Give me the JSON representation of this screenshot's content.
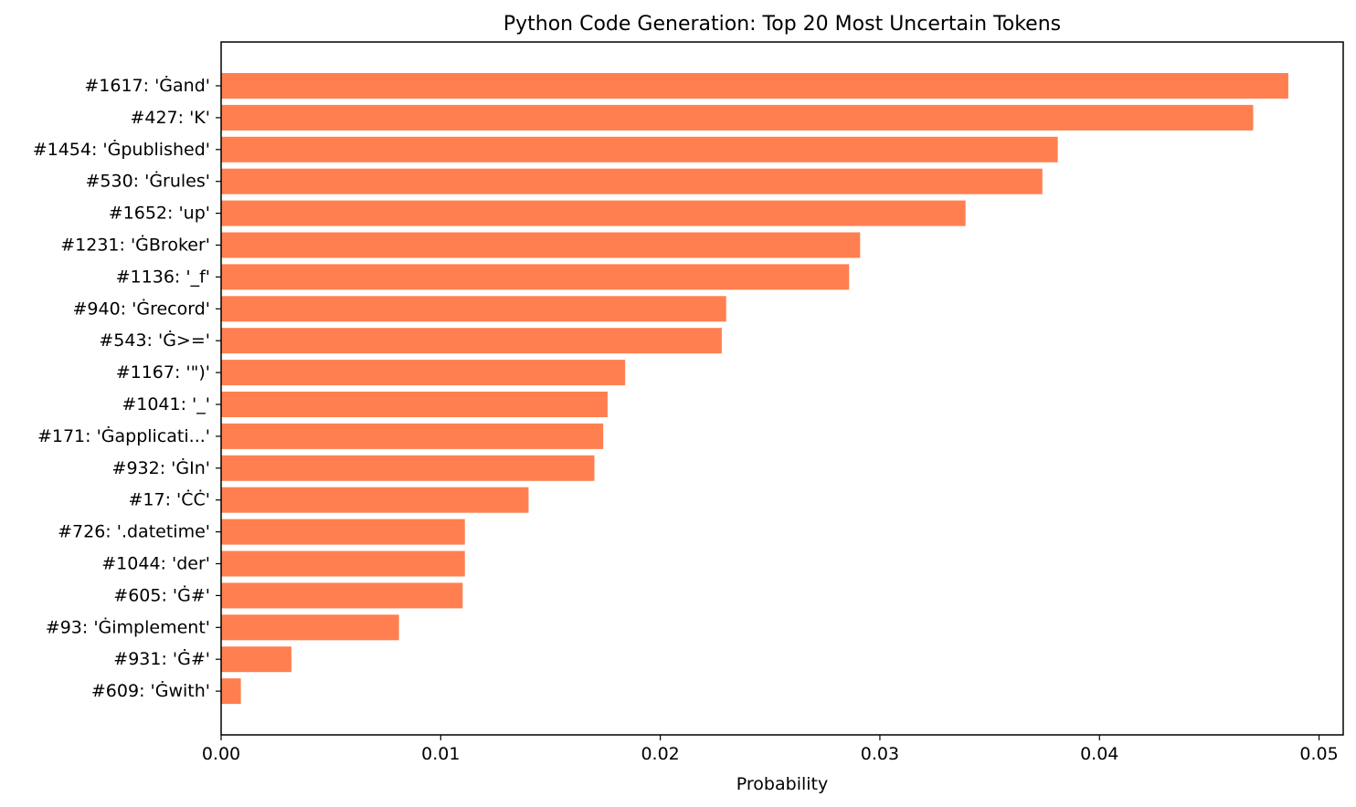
{
  "chart_data": {
    "type": "bar",
    "orientation": "horizontal",
    "title": "Python Code Generation: Top 20 Most Uncertain Tokens",
    "xlabel": "Probability",
    "ylabel": "",
    "xlim": [
      0,
      0.0511
    ],
    "xticks": [
      0.0,
      0.01,
      0.02,
      0.03,
      0.04,
      0.05
    ],
    "xtick_labels": [
      "0.00",
      "0.01",
      "0.02",
      "0.03",
      "0.04",
      "0.05"
    ],
    "grid": false,
    "bar_color": "#ff7f50",
    "categories": [
      "#1617: 'Ġand'",
      "#427: 'K'",
      "#1454: 'Ġpublished'",
      "#530: 'Ġrules'",
      "#1652: 'up'",
      "#1231: 'ĠBroker'",
      "#1136: '_f'",
      "#940: 'Ġrecord'",
      "#543: 'Ġ>='",
      "#1167: '\")'",
      "#1041: '_'",
      "#171: 'Ġapplicati...'",
      "#932: 'ĠIn'",
      "#17: 'ĊĊ'",
      "#726: '.datetime'",
      "#1044: 'der'",
      "#605: 'Ġ#'",
      "#93: 'Ġimplement'",
      "#931: 'Ġ#'",
      "#609: 'Ġwith'"
    ],
    "values": [
      0.0486,
      0.047,
      0.0381,
      0.0374,
      0.0339,
      0.0291,
      0.0286,
      0.023,
      0.0228,
      0.0184,
      0.0176,
      0.0174,
      0.017,
      0.014,
      0.0111,
      0.0111,
      0.011,
      0.0081,
      0.0032,
      0.0009
    ]
  }
}
